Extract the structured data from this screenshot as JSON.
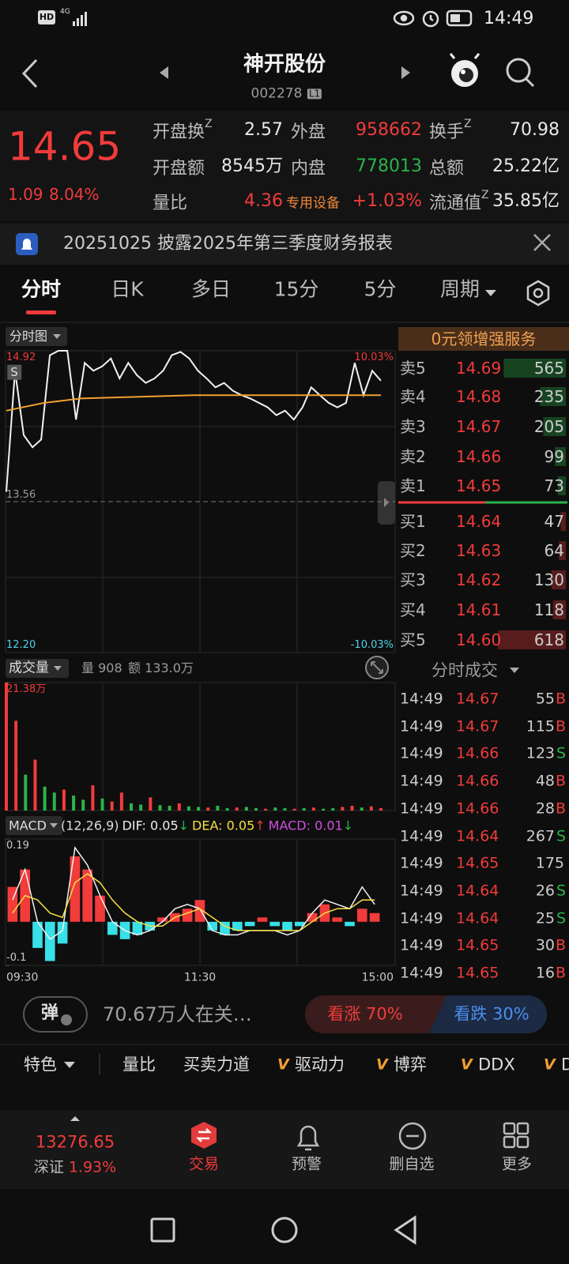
{
  "status_bar": {
    "hd": "HD",
    "network": "4G",
    "time": "14:49"
  },
  "header": {
    "title": "神开股份",
    "code": "002278",
    "level": "L1"
  },
  "quote": {
    "price": "14.65",
    "change": "1.09",
    "change_pct": "8.04%",
    "fields": [
      {
        "label": "开盘换",
        "sup": "Z",
        "value": "2.57"
      },
      {
        "label": "外盘",
        "value": "958662"
      },
      {
        "label": "换手",
        "sup": "Z",
        "value": "70.98"
      },
      {
        "label": "开盘额",
        "value": "8545万"
      },
      {
        "label": "内盘",
        "value": "778013"
      },
      {
        "label": "总额",
        "value": "25.22亿"
      },
      {
        "label": "量比",
        "value": "4.36"
      },
      {
        "label": "专用设备",
        "value": "+1.03%"
      },
      {
        "label": "流通值",
        "sup": "Z",
        "value": "35.85亿"
      }
    ]
  },
  "notice": {
    "text": "20251025 披露2025年第三季度财务报表"
  },
  "tabs": [
    "分时",
    "日K",
    "多日",
    "15分",
    "5分",
    "周期"
  ],
  "price_chart": {
    "type": "line",
    "label": "分时图",
    "badge": "S",
    "ylim": [
      12.2,
      14.92
    ],
    "yticks": [
      {
        "value": 12.2,
        "label": "12.20"
      },
      13.56,
      14.92
    ],
    "y2lim": [
      -10.03,
      10.03
    ],
    "y2ticks": [
      {
        "value": -10.03,
        "label": "-10.03%"
      },
      {
        "value": 10.03,
        "label": "10.03%"
      }
    ],
    "series": [
      {
        "color": "#f2f2f2",
        "values": [
          13.65,
          14.74,
          14.16,
          14.05,
          14.12,
          14.88,
          14.92,
          14.92,
          14.3,
          14.81,
          14.74,
          14.78,
          14.85,
          14.67,
          14.81,
          14.7,
          14.63,
          14.67,
          14.74,
          14.88,
          14.91,
          14.85,
          14.74,
          14.67,
          14.59,
          14.63,
          14.56,
          14.52,
          14.49,
          14.45,
          14.41,
          14.34,
          14.38,
          14.3,
          14.41,
          14.59,
          14.52,
          14.45,
          14.41,
          14.45,
          14.81,
          14.52,
          14.74,
          14.65
        ]
      },
      {
        "color": "#f0a030",
        "values": [
          14.38,
          14.45,
          14.49,
          14.5,
          14.51,
          14.52,
          14.52,
          14.52,
          14.52,
          14.52,
          14.52
        ]
      }
    ]
  },
  "order_book": {
    "title": "0元领增强服务",
    "asks": [
      {
        "label": "卖5",
        "price": "14.69",
        "volume": 565
      },
      {
        "label": "卖4",
        "price": "14.68",
        "volume": 235
      },
      {
        "label": "卖3",
        "price": "14.67",
        "volume": 205
      },
      {
        "label": "卖2",
        "price": "14.66",
        "volume": 99
      },
      {
        "label": "卖1",
        "price": "14.65",
        "volume": 73
      }
    ],
    "bids": [
      {
        "label": "买1",
        "price": "14.64",
        "volume": 47
      },
      {
        "label": "买2",
        "price": "14.63",
        "volume": 64
      },
      {
        "label": "买3",
        "price": "14.62",
        "volume": 130
      },
      {
        "label": "买4",
        "price": "14.61",
        "volume": 118
      },
      {
        "label": "买5",
        "price": "14.60",
        "volume": 618
      }
    ]
  },
  "volume_chart": {
    "type": "bar",
    "label": "成交量",
    "volume": "量 908",
    "amount": "额 133.0万",
    "ylim": [
      0,
      213800
    ],
    "yticks": [
      {
        "value": 213800,
        "label": "21.38万"
      }
    ],
    "values": [
      213800,
      150000,
      60000,
      85000,
      40000,
      30000,
      35000,
      25000,
      18000,
      42000,
      20000,
      15000,
      30000,
      12000,
      10000,
      22000,
      9000,
      8000,
      12000,
      7000,
      6000,
      5000,
      8000,
      4000,
      5000,
      6000,
      4000,
      3000,
      5000,
      4000,
      3000,
      4000,
      5000,
      3000,
      4000,
      6000,
      8000,
      5000,
      7000,
      4000
    ],
    "colors": [
      "#f23b3b",
      "#f23b3b",
      "#2bb34a",
      "#f23b3b",
      "#2bb34a",
      "#2bb34a",
      "#f23b3b",
      "#2bb34a",
      "#2bb34a",
      "#f23b3b",
      "#2bb34a",
      "#f23b3b",
      "#f23b3b",
      "#2bb34a",
      "#2bb34a",
      "#f23b3b",
      "#2bb34a",
      "#2bb34a",
      "#f23b3b",
      "#2bb34a",
      "#2bb34a",
      "#f23b3b",
      "#2bb34a",
      "#2bb34a",
      "#f23b3b",
      "#2bb34a",
      "#2bb34a",
      "#f23b3b",
      "#2bb34a",
      "#2bb34a",
      "#f23b3b",
      "#2bb34a",
      "#f23b3b",
      "#2bb34a",
      "#2bb34a",
      "#f23b3b",
      "#f23b3b",
      "#2bb34a",
      "#f23b3b",
      "#f23b3b"
    ]
  },
  "trades": {
    "title": "分时成交",
    "rows": [
      {
        "time": "14:49",
        "price": "14.67",
        "volume": "55",
        "side": "B"
      },
      {
        "time": "14:49",
        "price": "14.67",
        "volume": "115",
        "side": "B"
      },
      {
        "time": "14:49",
        "price": "14.66",
        "volume": "123",
        "side": "S"
      },
      {
        "time": "14:49",
        "price": "14.66",
        "volume": "48",
        "side": "B"
      },
      {
        "time": "14:49",
        "price": "14.66",
        "volume": "28",
        "side": "B"
      },
      {
        "time": "14:49",
        "price": "14.64",
        "volume": "267",
        "side": "S"
      },
      {
        "time": "14:49",
        "price": "14.65",
        "volume": "175"
      },
      {
        "time": "14:49",
        "price": "14.64",
        "volume": "26",
        "side": "S"
      },
      {
        "time": "14:49",
        "price": "14.64",
        "volume": "25",
        "side": "S"
      },
      {
        "time": "14:49",
        "price": "14.65",
        "volume": "30",
        "side": "B"
      },
      {
        "time": "14:49",
        "price": "14.65",
        "volume": "16",
        "side": "B"
      }
    ]
  },
  "macd_chart": {
    "type": "bar",
    "label": "MACD",
    "params": "(12,26,9)",
    "dif": "DIF: 0.05",
    "dif_arrow": "↓",
    "dea": "DEA: 0.05",
    "dea_arrow": "↑",
    "macd": "MACD: 0.01",
    "macd_arrow": "↓",
    "ylim": [
      -0.1,
      0.19
    ],
    "yticks": [
      -0.1,
      0.19
    ],
    "x_labels": [
      "09:30",
      "11:30",
      "15:00"
    ],
    "histogram": [
      0.08,
      0.12,
      -0.06,
      -0.09,
      -0.05,
      0.15,
      0.12,
      0.06,
      -0.03,
      -0.04,
      -0.03,
      -0.02,
      0.01,
      0.02,
      0.03,
      0.05,
      -0.02,
      -0.03,
      -0.02,
      -0.01,
      0.01,
      -0.01,
      -0.02,
      -0.01,
      0.02,
      0.04,
      0.01,
      -0.01,
      0.03,
      0.02
    ],
    "dif_line": [
      0.05,
      0.12,
      0.0,
      -0.04,
      -0.02,
      0.17,
      0.13,
      0.06,
      0.0,
      -0.02,
      -0.03,
      -0.02,
      0.0,
      0.03,
      0.04,
      0.03,
      -0.02,
      -0.03,
      -0.03,
      -0.02,
      -0.02,
      -0.02,
      -0.03,
      -0.02,
      0.02,
      0.05,
      0.04,
      0.03,
      0.08,
      0.04
    ],
    "dea_line": [
      0.02,
      0.06,
      0.05,
      0.02,
      0.01,
      0.09,
      0.11,
      0.09,
      0.05,
      0.02,
      0.0,
      -0.01,
      -0.01,
      0.01,
      0.02,
      0.03,
      0.01,
      -0.01,
      -0.02,
      -0.02,
      -0.02,
      -0.02,
      -0.02,
      -0.02,
      0.0,
      0.02,
      0.03,
      0.03,
      0.05,
      0.05
    ]
  },
  "sentiment": {
    "danmu": "弹",
    "watchers": "70.67万人在关…",
    "bull": "看涨 70%",
    "bear": "看跌 30%"
  },
  "feature_tabs": [
    {
      "label": "特色"
    },
    {
      "label": "量比"
    },
    {
      "label": "买卖力道"
    },
    {
      "badge": "V",
      "label": "驱动力"
    },
    {
      "badge": "V",
      "label": "博弈"
    },
    {
      "badge": "V",
      "label": "DDX"
    },
    {
      "badge": "V",
      "label": "D"
    }
  ],
  "bottom_nav": {
    "index_value": "13276.65",
    "index_name": "深证",
    "index_change": "1.93%",
    "items": [
      "交易",
      "预警",
      "删自选",
      "更多"
    ]
  }
}
